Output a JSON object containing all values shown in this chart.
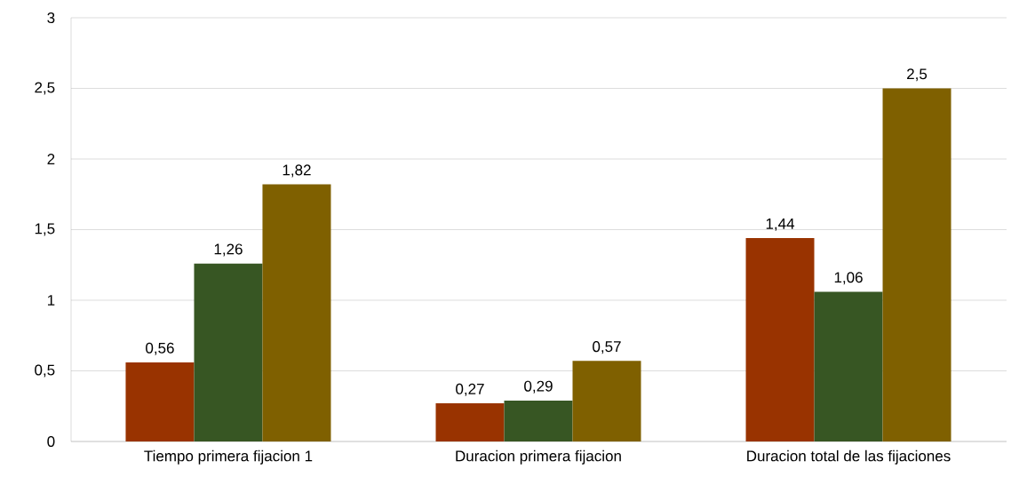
{
  "chart_data": {
    "type": "bar",
    "categories": [
      "Tiempo primera fijacion  1",
      "Duracion primera fijacion",
      "Duracion total de las fijaciones"
    ],
    "series": [
      {
        "color": "#993300",
        "values": [
          0.56,
          0.27,
          1.44
        ],
        "value_labels": [
          "0,56",
          "0,27",
          "1,44"
        ]
      },
      {
        "color": "#375623",
        "values": [
          1.26,
          0.29,
          1.06
        ],
        "value_labels": [
          "1,26",
          "0,29",
          "1,06"
        ]
      },
      {
        "color": "#7f6000",
        "values": [
          1.82,
          0.57,
          2.5
        ],
        "value_labels": [
          "1,82",
          "0,57",
          "2,5"
        ]
      }
    ],
    "ylim": [
      0,
      3
    ],
    "yticks": [
      0,
      {
        "value": 0.5,
        "label": "0,5"
      },
      1,
      {
        "value": 1.5,
        "label": "1,5"
      },
      2,
      {
        "value": 2.5,
        "label": "2,5"
      },
      3
    ],
    "grid": "y"
  }
}
